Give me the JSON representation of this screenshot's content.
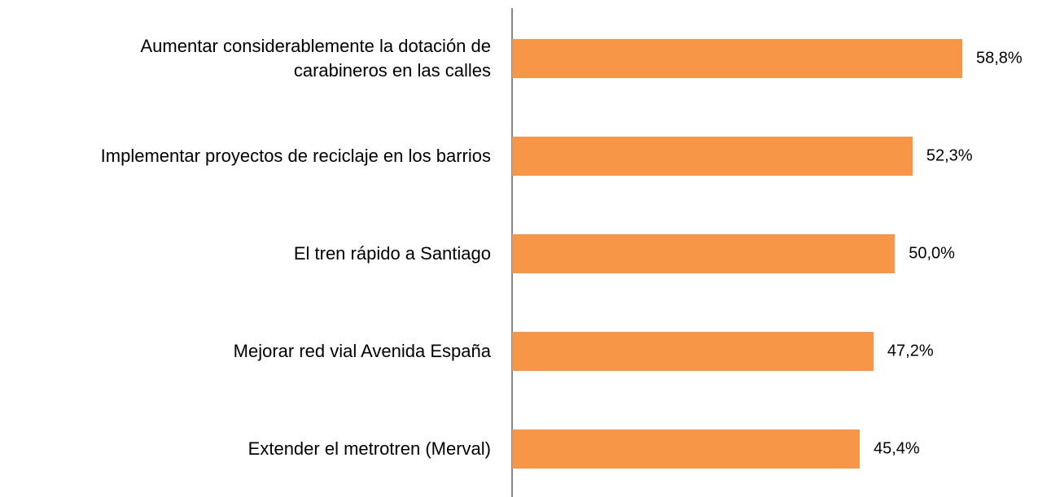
{
  "chart_data": {
    "type": "bar",
    "orientation": "horizontal",
    "categories": [
      "Aumentar considerablemente la dotación de\ncarabineros en las calles",
      "Implementar proyectos de reciclaje en los barrios",
      "El tren rápido a Santiago",
      "Mejorar red vial Avenida España",
      "Extender el metrotren (Merval)"
    ],
    "values": [
      58.8,
      52.3,
      50.0,
      47.2,
      45.4
    ],
    "value_labels": [
      "58,8%",
      "52,3%",
      "50,0%",
      "47,2%",
      "45,4%"
    ],
    "color": "#f79646"
  }
}
